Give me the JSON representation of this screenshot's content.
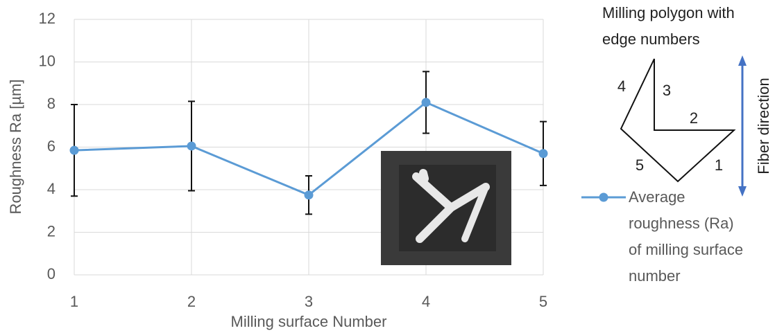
{
  "chart_data": {
    "type": "line",
    "x_label": "Milling surface Number",
    "y_label": "Roughness Ra  [µm]",
    "x": [
      1,
      2,
      3,
      4,
      5
    ],
    "xlim": [
      1,
      5
    ],
    "xticks": [
      1,
      2,
      3,
      4,
      5
    ],
    "ylim": [
      0,
      12
    ],
    "yticks": [
      0,
      2,
      4,
      6,
      8,
      10,
      12
    ],
    "grid": true,
    "legend": "right",
    "series": [
      {
        "name": "Average roughness (Ra) of milling surface number",
        "color": "#5b9bd5",
        "values": [
          5.85,
          6.05,
          3.75,
          8.1,
          5.7
        ],
        "errors": [
          2.15,
          2.1,
          0.9,
          1.45,
          1.5
        ]
      }
    ]
  },
  "diagram": {
    "title": "Milling polygon with edge numbers",
    "edge_labels": [
      "1",
      "2",
      "3",
      "4",
      "5"
    ],
    "arrow_label": "Fiber direction"
  }
}
